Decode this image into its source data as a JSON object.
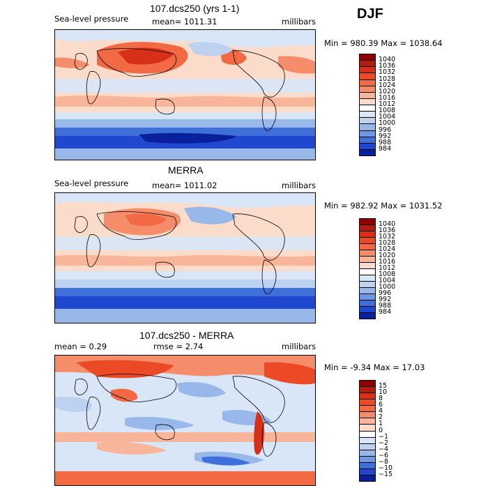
{
  "season": "DJF",
  "panels": [
    {
      "title": "107.dcs250 (yrs 1-1)",
      "left_label": "Sea-level pressure",
      "center_label": "mean= 1011.31",
      "right_label": "millibars",
      "minmax": "Min = 980.39 Max = 1038.64",
      "type": "abs"
    },
    {
      "title": "MERRA",
      "left_label": "Sea-level pressure",
      "center_label": "mean= 1011.02",
      "right_label": "millibars",
      "minmax": "Min = 982.92 Max = 1031.52",
      "type": "abs"
    },
    {
      "title": "107.dcs250 - MERRA",
      "left_label": "mean =    0.29",
      "center_label": "rmse =    2.74",
      "right_label": "millibars",
      "minmax": "Min =  -9.34 Max =  17.03",
      "type": "diff"
    }
  ],
  "colorbar_abs": {
    "labels": [
      "1040",
      "1036",
      "1032",
      "1028",
      "1024",
      "1020",
      "1016",
      "1012",
      "1008",
      "1004",
      "1000",
      "996",
      "992",
      "988",
      "984"
    ],
    "colors": [
      "#8b0000",
      "#b01d10",
      "#d63018",
      "#ec4a26",
      "#f26a44",
      "#f68d6a",
      "#f9b59a",
      "#fbdcca",
      "#ffffff",
      "#d8e6f7",
      "#bcd2f0",
      "#98b8ea",
      "#6e98e2",
      "#3f6fd8",
      "#1f47cf",
      "#0a1f9c"
    ]
  },
  "colorbar_diff": {
    "labels": [
      "15",
      "10",
      "8",
      "6",
      "4",
      "2",
      "1",
      "0",
      "−1",
      "−2",
      "−4",
      "−6",
      "−8",
      "−10",
      "−15"
    ],
    "colors": [
      "#8b0000",
      "#b01d10",
      "#d63018",
      "#ec4a26",
      "#f26a44",
      "#f68d6a",
      "#f9b59a",
      "#fbdcca",
      "#ffffff",
      "#d8e6f7",
      "#bcd2f0",
      "#98b8ea",
      "#6e98e2",
      "#3f6fd8",
      "#1f47cf",
      "#0a1f9c"
    ]
  }
}
